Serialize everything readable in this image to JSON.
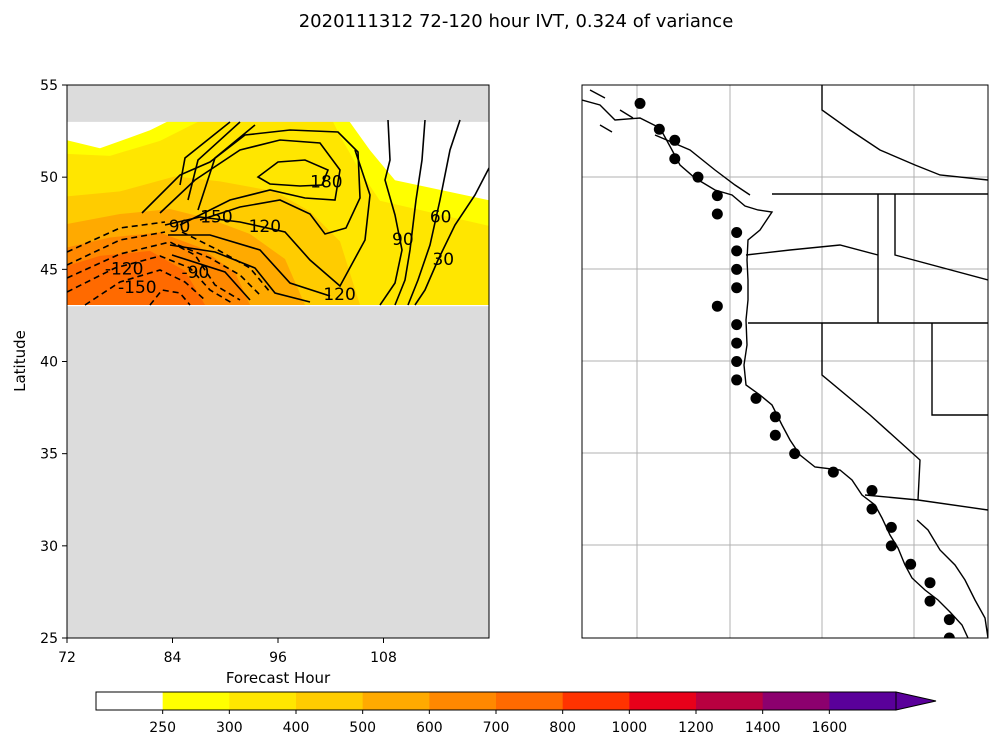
{
  "chart_data": [
    {
      "type": "contour",
      "title": "2020111312 72-120 hour IVT, 0.324 of variance",
      "xlabel": "Forecast Hour",
      "ylabel": "Latitude",
      "xlim": [
        72,
        120
      ],
      "ylim": [
        25,
        55
      ],
      "xticks": [
        72,
        84,
        96,
        108
      ],
      "yticks": [
        25,
        30,
        35,
        40,
        45,
        50,
        55
      ],
      "masked_regions": [
        {
          "name": "north-mask",
          "lat_range": [
            53,
            55
          ],
          "color": "#dcdcdc"
        },
        {
          "name": "south-mask",
          "lat_range": [
            25,
            43
          ],
          "color": "#dcdcdc"
        }
      ],
      "filled_bands": [
        {
          "level": 250,
          "extent_lat_range": [
            43,
            52
          ],
          "color": "#ffff00"
        },
        {
          "level": 300,
          "extent_lat_range": [
            43,
            51.7
          ],
          "color": "#ffe600"
        },
        {
          "level": 400,
          "extent_lat_range": [
            43,
            49.5
          ],
          "color": "#ffcc00"
        },
        {
          "level": 500,
          "extent_lat_range": [
            43,
            48
          ],
          "color": "#ffaa00"
        },
        {
          "level": 600,
          "extent_lat_range": [
            43,
            47
          ],
          "color": "#ff8800"
        },
        {
          "level": 700,
          "extent_lat_range": [
            43,
            46
          ],
          "color": "#ff6a00"
        }
      ],
      "contour_labels": [
        {
          "text": "180",
          "x": 101.5,
          "y": 49.7
        },
        {
          "text": "150",
          "x": 89.0,
          "y": 47.8
        },
        {
          "text": "120",
          "x": 94.5,
          "y": 47.3
        },
        {
          "text": "90",
          "x": 84.8,
          "y": 47.3
        },
        {
          "text": "120",
          "x": 103.0,
          "y": 43.6
        },
        {
          "text": "90",
          "x": 110.2,
          "y": 46.6
        },
        {
          "text": "60",
          "x": 114.5,
          "y": 47.8
        },
        {
          "text": "30",
          "x": 114.8,
          "y": 45.5
        },
        {
          "text": "-90",
          "x": 86.6,
          "y": 44.8
        },
        {
          "text": "-120",
          "x": 78.5,
          "y": 45.0
        },
        {
          "text": "-150",
          "x": 80.0,
          "y": 44.0
        }
      ],
      "colorbar": {
        "levels": [
          250,
          300,
          400,
          500,
          600,
          700,
          800,
          1000,
          1200,
          1400,
          1600
        ],
        "colors": [
          "#ffffff",
          "#ffff00",
          "#ffe600",
          "#ffcc00",
          "#ffaa00",
          "#ff8800",
          "#ff6a00",
          "#ff3300",
          "#e8001a",
          "#b80040",
          "#8c006e",
          "#5a009a"
        ],
        "extend": "max"
      }
    },
    {
      "type": "map",
      "region": "US West Coast",
      "lon_range": [
        -132,
        -111
      ],
      "lat_range": [
        25,
        55
      ],
      "grid": true,
      "markers": [
        {
          "lat": 54.0,
          "lon": -129.0
        },
        {
          "lat": 52.6,
          "lon": -128.0
        },
        {
          "lat": 52.0,
          "lon": -127.2
        },
        {
          "lat": 51.0,
          "lon": -127.2
        },
        {
          "lat": 50.0,
          "lon": -126.0
        },
        {
          "lat": 49.0,
          "lon": -125.0
        },
        {
          "lat": 48.0,
          "lon": -125.0
        },
        {
          "lat": 47.0,
          "lon": -124.0
        },
        {
          "lat": 46.0,
          "lon": -124.0
        },
        {
          "lat": 45.0,
          "lon": -124.0
        },
        {
          "lat": 44.0,
          "lon": -124.0
        },
        {
          "lat": 43.0,
          "lon": -125.0
        },
        {
          "lat": 42.0,
          "lon": -124.0
        },
        {
          "lat": 41.0,
          "lon": -124.0
        },
        {
          "lat": 40.0,
          "lon": -124.0
        },
        {
          "lat": 39.0,
          "lon": -124.0
        },
        {
          "lat": 38.0,
          "lon": -123.0
        },
        {
          "lat": 37.0,
          "lon": -122.0
        },
        {
          "lat": 36.0,
          "lon": -122.0
        },
        {
          "lat": 35.0,
          "lon": -121.0
        },
        {
          "lat": 34.0,
          "lon": -119.0
        },
        {
          "lat": 33.0,
          "lon": -117.0
        },
        {
          "lat": 32.0,
          "lon": -117.0
        },
        {
          "lat": 31.0,
          "lon": -116.0
        },
        {
          "lat": 30.0,
          "lon": -116.0
        },
        {
          "lat": 29.0,
          "lon": -115.0
        },
        {
          "lat": 28.0,
          "lon": -114.0
        },
        {
          "lat": 27.0,
          "lon": -114.0
        },
        {
          "lat": 26.0,
          "lon": -113.0
        },
        {
          "lat": 25.0,
          "lon": -113.0
        }
      ]
    }
  ]
}
